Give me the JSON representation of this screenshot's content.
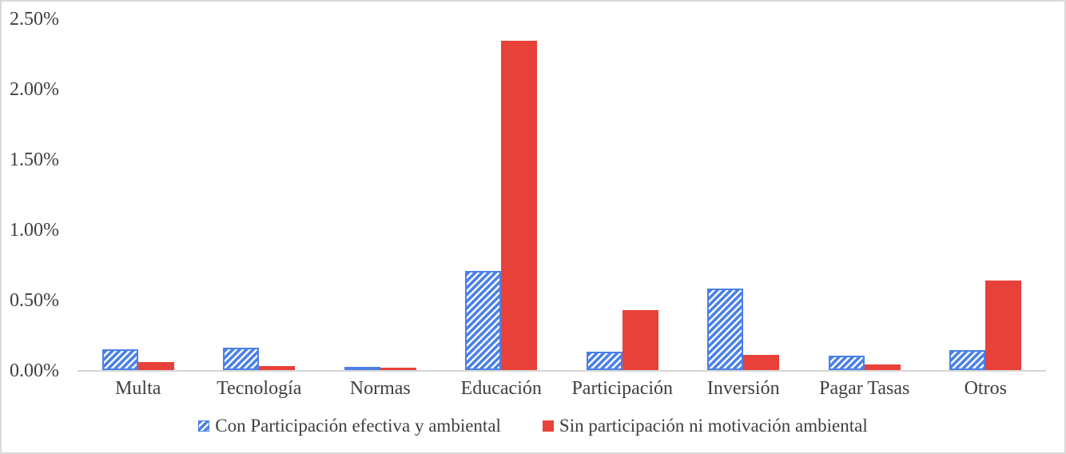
{
  "chart_data": {
    "type": "bar",
    "title": "",
    "xlabel": "",
    "ylabel": "",
    "categories": [
      "Multa",
      "Tecnología",
      "Normas",
      "Educación",
      "Participación",
      "Inversión",
      "Pagar Tasas",
      "Otros"
    ],
    "series": [
      {
        "name": "Con Participación efectiva y ambiental",
        "color": "#4a80e8",
        "fill_pattern": "diagonal-hatch",
        "values": [
          0.15,
          0.16,
          0.015,
          0.71,
          0.13,
          0.58,
          0.1,
          0.14
        ]
      },
      {
        "name": "Sin participación ni motivación ambiental",
        "color": "#e8413a",
        "fill_pattern": "solid",
        "values": [
          0.06,
          0.03,
          0.015,
          2.35,
          0.43,
          0.11,
          0.04,
          0.64
        ]
      }
    ],
    "value_unit": "%",
    "ylim": [
      0,
      2.5
    ],
    "yticks": [
      "0.00%",
      "0.50%",
      "1.00%",
      "1.50%",
      "2.00%",
      "2.50%"
    ],
    "ytick_values": [
      0,
      0.5,
      1.0,
      1.5,
      2.0,
      2.5
    ],
    "grid": "off",
    "legend_position": "bottom"
  },
  "colors": {
    "background": "#ffffff",
    "canvas_border": "#d9d9d9",
    "axis_line": "#d6d6d6",
    "text": "#3f3f3f"
  }
}
